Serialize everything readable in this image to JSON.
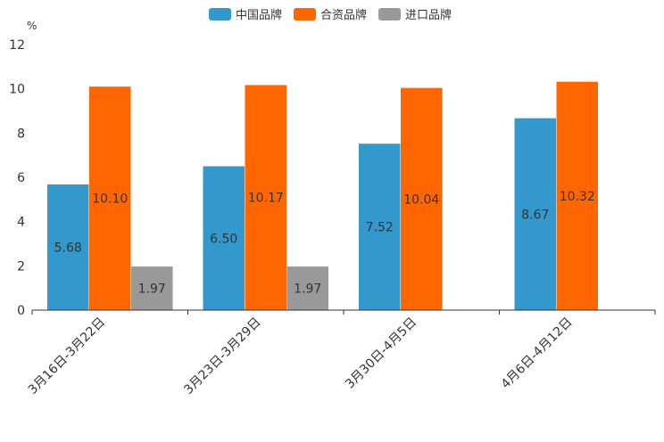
{
  "chart_data": {
    "type": "bar",
    "categories": [
      "3月16日-3月22日",
      "3月23日-3月29日",
      "3月30日-4月5日",
      "4月6日-4月12日"
    ],
    "series": [
      {
        "name": "中国品牌",
        "color": "#3399cc",
        "values": [
          5.68,
          6.5,
          7.52,
          8.67
        ],
        "labels": [
          "5.68",
          "6.50",
          "7.52",
          "8.67"
        ]
      },
      {
        "name": "合资品牌",
        "color": "#ff6600",
        "values": [
          10.1,
          10.17,
          10.04,
          10.32
        ],
        "labels": [
          "10.10",
          "10.17",
          "10.04",
          "10.32"
        ]
      },
      {
        "name": "进口品牌",
        "color": "#999999",
        "values": [
          1.97,
          1.97,
          null,
          null
        ],
        "labels": [
          "1.97",
          "1.97",
          null,
          null
        ]
      }
    ],
    "yunit": "%",
    "ylim": [
      0,
      12
    ],
    "yticks": [
      "0",
      "2",
      "4",
      "6",
      "8",
      "10",
      "12"
    ],
    "grid": false,
    "legend": "top-center"
  }
}
